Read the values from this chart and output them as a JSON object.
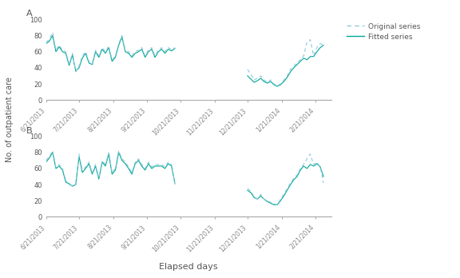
{
  "title_a": "A",
  "title_b": "B",
  "ylabel": "No. of outpatient care",
  "xlabel": "Elapsed days",
  "legend_original": "Original series",
  "legend_fitted": "Fitted series",
  "color_original": "#8fc8e0",
  "color_fitted": "#00a896",
  "ylim": [
    0,
    100
  ],
  "yticks": [
    0,
    20,
    40,
    60,
    80,
    100
  ],
  "gap_start": "10/21/2013",
  "gap_end": "11/21/2013",
  "series_a_original": [
    [
      "6/21/2013",
      72
    ],
    [
      "6/24/2013",
      75
    ],
    [
      "6/27/2013",
      84
    ],
    [
      "6/30/2013",
      62
    ],
    [
      "7/3/2013",
      68
    ],
    [
      "7/6/2013",
      62
    ],
    [
      "7/9/2013",
      60
    ],
    [
      "7/12/2013",
      45
    ],
    [
      "7/15/2013",
      58
    ],
    [
      "7/18/2013",
      35
    ],
    [
      "7/21/2013",
      42
    ],
    [
      "7/24/2013",
      55
    ],
    [
      "7/27/2013",
      60
    ],
    [
      "7/30/2013",
      48
    ],
    [
      "8/2/2013",
      45
    ],
    [
      "8/5/2013",
      62
    ],
    [
      "8/8/2013",
      55
    ],
    [
      "8/11/2013",
      65
    ],
    [
      "8/14/2013",
      60
    ],
    [
      "8/17/2013",
      67
    ],
    [
      "8/20/2013",
      50
    ],
    [
      "8/23/2013",
      55
    ],
    [
      "8/26/2013",
      70
    ],
    [
      "8/29/2013",
      80
    ],
    [
      "9/1/2013",
      62
    ],
    [
      "9/4/2013",
      60
    ],
    [
      "9/7/2013",
      55
    ],
    [
      "9/10/2013",
      60
    ],
    [
      "9/13/2013",
      62
    ],
    [
      "9/16/2013",
      65
    ],
    [
      "9/19/2013",
      55
    ],
    [
      "9/22/2013",
      62
    ],
    [
      "9/25/2013",
      65
    ],
    [
      "9/28/2013",
      55
    ],
    [
      "10/1/2013",
      62
    ],
    [
      "10/4/2013",
      65
    ],
    [
      "10/7/2013",
      60
    ],
    [
      "10/10/2013",
      65
    ],
    [
      "10/13/2013",
      63
    ],
    [
      "10/16/2013",
      65
    ],
    [
      "12/21/2013",
      38
    ],
    [
      "12/24/2013",
      32
    ],
    [
      "12/27/2013",
      25
    ],
    [
      "12/30/2013",
      27
    ],
    [
      "1/2/2014",
      30
    ],
    [
      "1/5/2014",
      25
    ],
    [
      "1/8/2014",
      22
    ],
    [
      "1/11/2014",
      25
    ],
    [
      "1/14/2014",
      20
    ],
    [
      "1/17/2014",
      18
    ],
    [
      "1/20/2014",
      20
    ],
    [
      "1/23/2014",
      25
    ],
    [
      "1/26/2014",
      30
    ],
    [
      "1/29/2014",
      38
    ],
    [
      "2/1/2014",
      42
    ],
    [
      "2/4/2014",
      46
    ],
    [
      "2/7/2014",
      50
    ],
    [
      "2/10/2014",
      55
    ],
    [
      "2/13/2014",
      72
    ],
    [
      "2/16/2014",
      75
    ],
    [
      "2/19/2014",
      55
    ],
    [
      "2/22/2014",
      65
    ],
    [
      "2/25/2014",
      70
    ],
    [
      "2/28/2014",
      68
    ]
  ],
  "series_a_fitted": [
    [
      "6/21/2013",
      70
    ],
    [
      "6/24/2013",
      73
    ],
    [
      "6/27/2013",
      80
    ],
    [
      "6/30/2013",
      60
    ],
    [
      "7/3/2013",
      66
    ],
    [
      "7/6/2013",
      60
    ],
    [
      "7/9/2013",
      58
    ],
    [
      "7/12/2013",
      43
    ],
    [
      "7/15/2013",
      56
    ],
    [
      "7/18/2013",
      36
    ],
    [
      "7/21/2013",
      40
    ],
    [
      "7/24/2013",
      52
    ],
    [
      "7/27/2013",
      58
    ],
    [
      "7/30/2013",
      46
    ],
    [
      "8/2/2013",
      44
    ],
    [
      "8/5/2013",
      60
    ],
    [
      "8/8/2013",
      53
    ],
    [
      "8/11/2013",
      63
    ],
    [
      "8/14/2013",
      58
    ],
    [
      "8/17/2013",
      65
    ],
    [
      "8/20/2013",
      48
    ],
    [
      "8/23/2013",
      53
    ],
    [
      "8/26/2013",
      68
    ],
    [
      "8/29/2013",
      78
    ],
    [
      "9/1/2013",
      60
    ],
    [
      "9/4/2013",
      58
    ],
    [
      "9/7/2013",
      53
    ],
    [
      "9/10/2013",
      58
    ],
    [
      "9/13/2013",
      60
    ],
    [
      "9/16/2013",
      63
    ],
    [
      "9/19/2013",
      53
    ],
    [
      "9/22/2013",
      60
    ],
    [
      "9/25/2013",
      63
    ],
    [
      "9/28/2013",
      53
    ],
    [
      "10/1/2013",
      60
    ],
    [
      "10/4/2013",
      63
    ],
    [
      "10/7/2013",
      58
    ],
    [
      "10/10/2013",
      63
    ],
    [
      "10/13/2013",
      61
    ],
    [
      "10/16/2013",
      64
    ],
    [
      "12/21/2013",
      30
    ],
    [
      "12/24/2013",
      26
    ],
    [
      "12/27/2013",
      22
    ],
    [
      "12/30/2013",
      24
    ],
    [
      "1/2/2014",
      27
    ],
    [
      "1/5/2014",
      23
    ],
    [
      "1/8/2014",
      21
    ],
    [
      "1/11/2014",
      23
    ],
    [
      "1/14/2014",
      19
    ],
    [
      "1/17/2014",
      17
    ],
    [
      "1/20/2014",
      19
    ],
    [
      "1/23/2014",
      23
    ],
    [
      "1/26/2014",
      28
    ],
    [
      "1/29/2014",
      35
    ],
    [
      "2/1/2014",
      40
    ],
    [
      "2/4/2014",
      44
    ],
    [
      "2/7/2014",
      48
    ],
    [
      "2/10/2014",
      52
    ],
    [
      "2/13/2014",
      50
    ],
    [
      "2/16/2014",
      54
    ],
    [
      "2/19/2014",
      54
    ],
    [
      "2/22/2014",
      60
    ],
    [
      "2/25/2014",
      65
    ],
    [
      "2/28/2014",
      68
    ]
  ],
  "series_b_original": [
    [
      "6/21/2013",
      70
    ],
    [
      "6/24/2013",
      75
    ],
    [
      "6/27/2013",
      82
    ],
    [
      "6/30/2013",
      62
    ],
    [
      "7/3/2013",
      65
    ],
    [
      "7/6/2013",
      60
    ],
    [
      "7/9/2013",
      45
    ],
    [
      "7/12/2013",
      40
    ],
    [
      "7/15/2013",
      38
    ],
    [
      "7/18/2013",
      40
    ],
    [
      "7/21/2013",
      78
    ],
    [
      "7/24/2013",
      58
    ],
    [
      "7/27/2013",
      62
    ],
    [
      "7/30/2013",
      68
    ],
    [
      "8/2/2013",
      55
    ],
    [
      "8/5/2013",
      65
    ],
    [
      "8/8/2013",
      48
    ],
    [
      "8/11/2013",
      70
    ],
    [
      "8/14/2013",
      65
    ],
    [
      "8/17/2013",
      80
    ],
    [
      "8/20/2013",
      55
    ],
    [
      "8/23/2013",
      60
    ],
    [
      "8/26/2013",
      82
    ],
    [
      "8/29/2013",
      72
    ],
    [
      "9/1/2013",
      68
    ],
    [
      "9/4/2013",
      62
    ],
    [
      "9/7/2013",
      55
    ],
    [
      "9/10/2013",
      68
    ],
    [
      "9/13/2013",
      72
    ],
    [
      "9/16/2013",
      65
    ],
    [
      "9/19/2013",
      60
    ],
    [
      "9/22/2013",
      68
    ],
    [
      "9/25/2013",
      62
    ],
    [
      "9/28/2013",
      65
    ],
    [
      "10/1/2013",
      65
    ],
    [
      "10/4/2013",
      65
    ],
    [
      "10/7/2013",
      62
    ],
    [
      "10/10/2013",
      68
    ],
    [
      "10/13/2013",
      65
    ],
    [
      "10/16/2013",
      40
    ],
    [
      "12/21/2013",
      35
    ],
    [
      "12/24/2013",
      32
    ],
    [
      "12/27/2013",
      25
    ],
    [
      "12/30/2013",
      22
    ],
    [
      "1/2/2014",
      28
    ],
    [
      "1/5/2014",
      22
    ],
    [
      "1/8/2014",
      20
    ],
    [
      "1/11/2014",
      18
    ],
    [
      "1/14/2014",
      16
    ],
    [
      "1/17/2014",
      15
    ],
    [
      "1/20/2014",
      22
    ],
    [
      "1/23/2014",
      28
    ],
    [
      "1/26/2014",
      35
    ],
    [
      "1/29/2014",
      42
    ],
    [
      "2/1/2014",
      48
    ],
    [
      "2/4/2014",
      52
    ],
    [
      "2/7/2014",
      60
    ],
    [
      "2/10/2014",
      65
    ],
    [
      "2/13/2014",
      72
    ],
    [
      "2/16/2014",
      78
    ],
    [
      "2/19/2014",
      65
    ],
    [
      "2/22/2014",
      68
    ],
    [
      "2/25/2014",
      62
    ],
    [
      "2/28/2014",
      42
    ]
  ],
  "series_b_fitted": [
    [
      "6/21/2013",
      68
    ],
    [
      "6/24/2013",
      73
    ],
    [
      "6/27/2013",
      80
    ],
    [
      "6/30/2013",
      60
    ],
    [
      "7/3/2013",
      63
    ],
    [
      "7/6/2013",
      58
    ],
    [
      "7/9/2013",
      43
    ],
    [
      "7/12/2013",
      41
    ],
    [
      "7/15/2013",
      38
    ],
    [
      "7/18/2013",
      40
    ],
    [
      "7/21/2013",
      75
    ],
    [
      "7/24/2013",
      55
    ],
    [
      "7/27/2013",
      60
    ],
    [
      "7/30/2013",
      66
    ],
    [
      "8/2/2013",
      53
    ],
    [
      "8/5/2013",
      63
    ],
    [
      "8/8/2013",
      47
    ],
    [
      "8/11/2013",
      68
    ],
    [
      "8/14/2013",
      63
    ],
    [
      "8/17/2013",
      78
    ],
    [
      "8/20/2013",
      53
    ],
    [
      "8/23/2013",
      58
    ],
    [
      "8/26/2013",
      80
    ],
    [
      "8/29/2013",
      70
    ],
    [
      "9/1/2013",
      66
    ],
    [
      "9/4/2013",
      60
    ],
    [
      "9/7/2013",
      53
    ],
    [
      "9/10/2013",
      66
    ],
    [
      "9/13/2013",
      70
    ],
    [
      "9/16/2013",
      63
    ],
    [
      "9/19/2013",
      58
    ],
    [
      "9/22/2013",
      66
    ],
    [
      "9/25/2013",
      60
    ],
    [
      "9/28/2013",
      63
    ],
    [
      "10/1/2013",
      63
    ],
    [
      "10/4/2013",
      63
    ],
    [
      "10/7/2013",
      60
    ],
    [
      "10/10/2013",
      66
    ],
    [
      "10/13/2013",
      63
    ],
    [
      "10/16/2013",
      42
    ],
    [
      "12/21/2013",
      33
    ],
    [
      "12/24/2013",
      30
    ],
    [
      "12/27/2013",
      24
    ],
    [
      "12/30/2013",
      22
    ],
    [
      "1/2/2014",
      26
    ],
    [
      "1/5/2014",
      22
    ],
    [
      "1/8/2014",
      19
    ],
    [
      "1/11/2014",
      17
    ],
    [
      "1/14/2014",
      15
    ],
    [
      "1/17/2014",
      15
    ],
    [
      "1/20/2014",
      20
    ],
    [
      "1/23/2014",
      26
    ],
    [
      "1/26/2014",
      33
    ],
    [
      "1/29/2014",
      40
    ],
    [
      "2/1/2014",
      46
    ],
    [
      "2/4/2014",
      50
    ],
    [
      "2/7/2014",
      58
    ],
    [
      "2/10/2014",
      63
    ],
    [
      "2/13/2014",
      60
    ],
    [
      "2/16/2014",
      65
    ],
    [
      "2/19/2014",
      63
    ],
    [
      "2/22/2014",
      66
    ],
    [
      "2/25/2014",
      62
    ],
    [
      "2/28/2014",
      50
    ]
  ],
  "xtick_dates": [
    "6/21/2013",
    "7/21/2013",
    "8/21/2013",
    "9/21/2013",
    "10/21/2013",
    "11/21/2013",
    "12/21/2013",
    "1/21/2014",
    "2/21/2014"
  ],
  "xmin": "6/21/2013",
  "xmax": "3/7/2014",
  "bg_color": "#ffffff",
  "font_color": "#555555",
  "tick_color": "#888888",
  "spine_color": "#aaaaaa"
}
